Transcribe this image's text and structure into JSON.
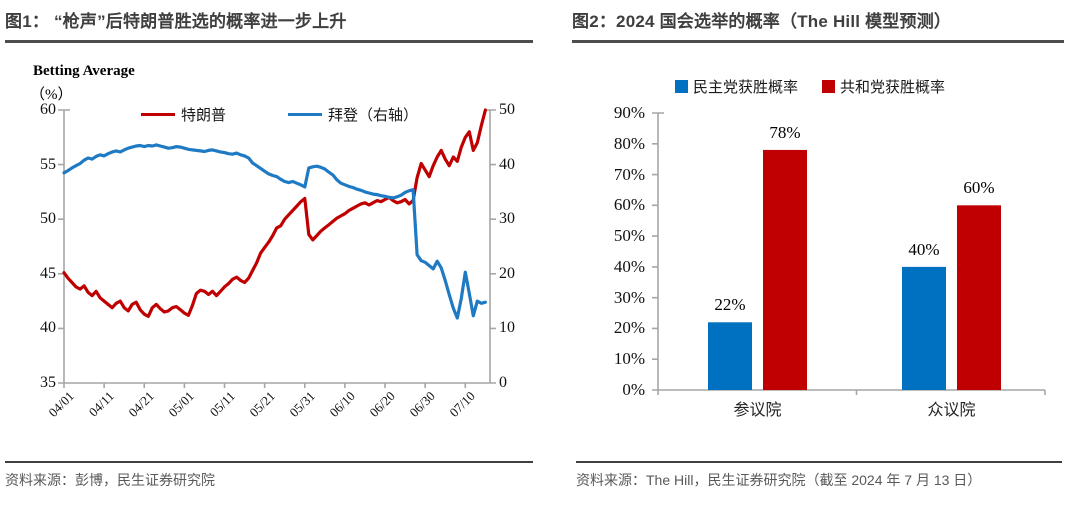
{
  "figure1": {
    "title": "图1： “枪声”后特朗普胜选的概率进一步上升",
    "source": "资料来源：彭博，民生证券研究院"
  },
  "figure2": {
    "title": "图2：2024 国会选举的概率（The Hill 模型预测）",
    "source": "资料来源：The Hill，民生证券研究院（截至 2024 年 7 月 13 日）"
  },
  "colors": {
    "trump_red": "#C00000",
    "biden_blue": "#1F7AC4",
    "dem_blue": "#0070C0",
    "rep_red": "#C00000",
    "axis_gray": "#A6A6A6",
    "title_gray": "#3F3F3F",
    "source_gray": "#595959"
  },
  "chart_data": [
    {
      "type": "line",
      "title": "图1： “枪声”后特朗普胜选的概率进一步上升",
      "axis_title": "Betting Average",
      "axis_unit": "（%）",
      "x_start_date": "04/01",
      "x_end_date": "07/15",
      "x_tick_labels": [
        "04/01",
        "04/11",
        "04/21",
        "05/01",
        "05/11",
        "05/21",
        "05/31",
        "06/10",
        "06/20",
        "06/30",
        "07/10"
      ],
      "x_tick_day_index": [
        0,
        10,
        20,
        30,
        40,
        50,
        60,
        70,
        80,
        90,
        100
      ],
      "left_axis": {
        "min": 35,
        "max": 60,
        "tick_labels": [
          "60",
          "55",
          "50",
          "45",
          "40",
          "35"
        ],
        "tick_values": [
          60,
          55,
          50,
          45,
          40,
          35
        ]
      },
      "right_axis": {
        "min": 0,
        "max": 50,
        "tick_labels": [
          "50",
          "40",
          "30",
          "20",
          "10",
          "0"
        ],
        "tick_values": [
          50,
          40,
          30,
          20,
          10,
          0
        ]
      },
      "grid": false,
      "legend_position": "top",
      "series": [
        {
          "name": "特朗普",
          "axis": "left",
          "color": "#C00000",
          "values": [
            45.1,
            44.6,
            44.2,
            43.8,
            43.6,
            43.9,
            43.3,
            43.0,
            43.4,
            42.8,
            42.5,
            42.2,
            41.9,
            42.3,
            42.5,
            41.9,
            41.6,
            42.2,
            42.4,
            41.7,
            41.3,
            41.1,
            41.9,
            42.2,
            41.8,
            41.5,
            41.6,
            41.9,
            42.0,
            41.7,
            41.4,
            41.2,
            42.1,
            43.2,
            43.5,
            43.4,
            43.1,
            43.4,
            43.0,
            43.4,
            43.8,
            44.1,
            44.5,
            44.7,
            44.4,
            44.2,
            44.6,
            45.3,
            46.0,
            46.9,
            47.4,
            47.9,
            48.5,
            49.2,
            49.4,
            50.0,
            50.4,
            50.8,
            51.2,
            51.6,
            51.9,
            48.6,
            48.1,
            48.5,
            48.9,
            49.2,
            49.5,
            49.8,
            50.1,
            50.3,
            50.5,
            50.8,
            51.0,
            51.2,
            51.4,
            51.5,
            51.3,
            51.5,
            51.7,
            51.6,
            51.8,
            52.0,
            51.7,
            51.5,
            51.6,
            51.8,
            51.4,
            51.7,
            53.8,
            55.1,
            54.5,
            53.9,
            54.9,
            55.7,
            56.3,
            55.5,
            54.9,
            55.7,
            55.3,
            56.6,
            57.5,
            58.0,
            56.3,
            57.0,
            58.6,
            60.0
          ]
        },
        {
          "name": "拜登（右轴）",
          "axis": "right",
          "color": "#1F7AC4",
          "values": [
            38.5,
            38.9,
            39.4,
            39.8,
            40.2,
            40.8,
            41.2,
            41.0,
            41.5,
            41.8,
            41.6,
            42.0,
            42.3,
            42.5,
            42.3,
            42.7,
            43.0,
            43.2,
            43.4,
            43.5,
            43.3,
            43.5,
            43.4,
            43.6,
            43.4,
            43.2,
            43.0,
            43.1,
            43.3,
            43.2,
            43.0,
            42.8,
            42.7,
            42.6,
            42.5,
            42.4,
            42.6,
            42.7,
            42.5,
            42.3,
            42.2,
            42.0,
            41.9,
            42.1,
            41.8,
            41.6,
            41.2,
            40.3,
            39.8,
            39.3,
            38.8,
            38.3,
            38.0,
            37.8,
            37.3,
            36.9,
            36.7,
            36.9,
            36.6,
            36.3,
            35.9,
            39.4,
            39.6,
            39.7,
            39.5,
            39.2,
            38.6,
            38.1,
            37.2,
            36.6,
            36.3,
            36.0,
            35.8,
            35.5,
            35.3,
            35.0,
            34.8,
            34.6,
            34.5,
            34.3,
            34.2,
            34.0,
            33.9,
            34.1,
            34.4,
            34.9,
            35.2,
            35.4,
            23.5,
            22.4,
            22.1,
            21.5,
            20.9,
            22.3,
            21.1,
            18.8,
            16.2,
            13.7,
            11.9,
            15.5,
            20.3,
            16.4,
            12.3,
            15.0,
            14.6,
            14.8
          ]
        }
      ]
    },
    {
      "type": "bar",
      "title": "图2：2024 国会选举的概率（The Hill 模型预测）",
      "categories": [
        "参议院",
        "众议院"
      ],
      "ylim": [
        0,
        90
      ],
      "y_tick_labels": [
        "0%",
        "10%",
        "20%",
        "30%",
        "40%",
        "50%",
        "60%",
        "70%",
        "80%",
        "90%"
      ],
      "y_tick_values": [
        0,
        10,
        20,
        30,
        40,
        50,
        60,
        70,
        80,
        90
      ],
      "grid": false,
      "legend_position": "top",
      "series": [
        {
          "name": "民主党获胜概率",
          "color": "#0070C0",
          "values": [
            22,
            40
          ],
          "data_labels": [
            "22%",
            "40%"
          ]
        },
        {
          "name": "共和党获胜概率",
          "color": "#C00000",
          "values": [
            78,
            60
          ],
          "data_labels": [
            "78%",
            "60%"
          ]
        }
      ]
    }
  ]
}
